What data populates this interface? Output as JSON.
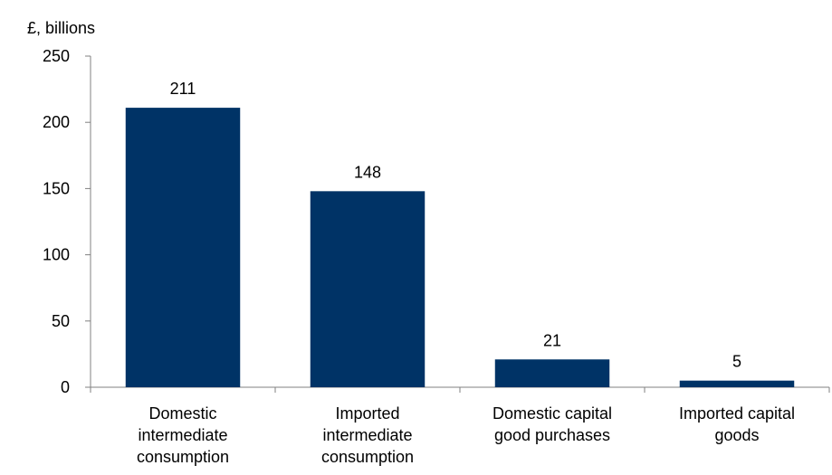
{
  "chart_data": {
    "type": "bar",
    "title": "",
    "unit_label": "£, billions",
    "xlabel": "",
    "ylabel": "",
    "categories": [
      [
        "Domestic",
        "intermediate",
        "consumption"
      ],
      [
        "Imported",
        "intermediate",
        "consumption"
      ],
      [
        "Domestic capital",
        "good purchases"
      ],
      [
        "Imported capital",
        "goods"
      ]
    ],
    "series": [
      {
        "values": [
          211,
          148,
          21,
          5
        ],
        "data_labels": [
          "211",
          "148",
          "21",
          "5"
        ]
      }
    ],
    "ylim": [
      0,
      250
    ],
    "yticks": [
      0,
      50,
      100,
      150,
      200,
      250
    ],
    "grid": false,
    "legend": "none",
    "colors": {
      "bar": "#003366",
      "axis": "#808080"
    }
  }
}
